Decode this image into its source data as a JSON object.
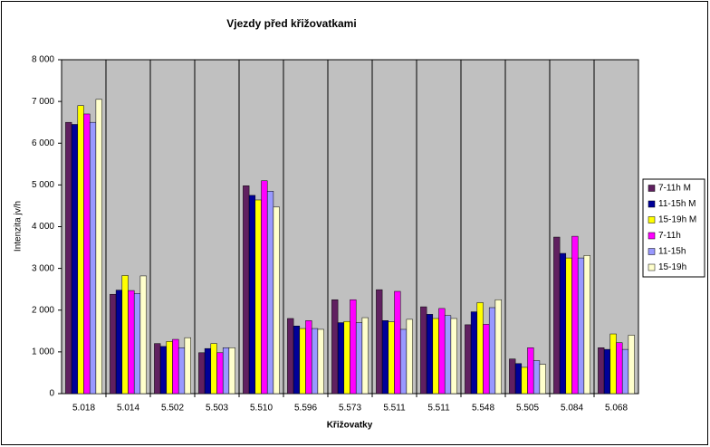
{
  "chart_data": {
    "type": "bar",
    "title": "Vjezdy před křižovatkami",
    "xlabel": "Křižovatky",
    "ylabel": "Intenzita jv/h",
    "categories": [
      "5.018",
      "5.014",
      "5.502",
      "5.503",
      "5.510",
      "5.596",
      "5.573",
      "5.511",
      "5.511",
      "5.548",
      "5.505",
      "5.084",
      "5.068"
    ],
    "series": [
      {
        "name": "7-11h M",
        "color": "#602060",
        "values": [
          6500,
          2380,
          1200,
          980,
          4980,
          1800,
          2250,
          2490,
          2080,
          1650,
          830,
          3750,
          1100
        ]
      },
      {
        "name": "11-15h M",
        "color": "#000099",
        "values": [
          6450,
          2480,
          1130,
          1080,
          4750,
          1620,
          1700,
          1750,
          1900,
          1960,
          720,
          3360,
          1060
        ]
      },
      {
        "name": "15-19h M",
        "color": "#ffff00",
        "values": [
          6900,
          2830,
          1250,
          1200,
          4640,
          1560,
          1730,
          1720,
          1800,
          2180,
          630,
          3250,
          1430
        ]
      },
      {
        "name": "7-11h",
        "color": "#ff00ff",
        "values": [
          6700,
          2470,
          1300,
          980,
          5100,
          1750,
          2250,
          2450,
          2040,
          1660,
          1100,
          3770,
          1220
        ]
      },
      {
        "name": "11-15h",
        "color": "#9999ff",
        "values": [
          6500,
          2400,
          1100,
          1100,
          4850,
          1560,
          1700,
          1540,
          1870,
          2060,
          790,
          3250,
          1060
        ]
      },
      {
        "name": "15-19h",
        "color": "#ffffcc",
        "values": [
          7050,
          2820,
          1340,
          1100,
          4470,
          1540,
          1820,
          1780,
          1800,
          2250,
          700,
          3310,
          1400
        ]
      }
    ],
    "ylim": [
      0,
      8000
    ],
    "yticks": [
      0,
      {
        "value": 1000,
        "label": "1 000"
      },
      {
        "value": 2000,
        "label": "2 000"
      },
      {
        "value": 3000,
        "label": "3 000"
      },
      {
        "value": 4000,
        "label": "4 000"
      },
      {
        "value": 5000,
        "label": "5 000"
      },
      {
        "value": 6000,
        "label": "6 000"
      },
      {
        "value": 7000,
        "label": "7 000"
      },
      {
        "value": 8000,
        "label": "8 000"
      }
    ],
    "legend": "right"
  }
}
